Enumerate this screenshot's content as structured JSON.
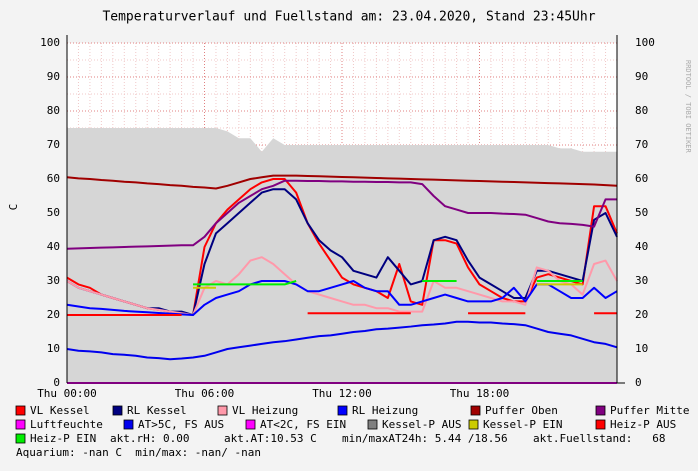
{
  "chart_data": {
    "type": "line",
    "title": "Temperaturverlauf und Fuellstand am: 23.04.2020, Stand 23:45Uhr",
    "y_label": "C",
    "watermark": "RRDTOOL / TOBI OETIKER",
    "xlim": [
      0,
      24
    ],
    "ylim": [
      0,
      100
    ],
    "xticks": [
      {
        "value": 0,
        "label": "Thu 00:00"
      },
      {
        "value": 6,
        "label": "Thu 06:00"
      },
      {
        "value": 12,
        "label": "Thu 12:00"
      },
      {
        "value": 18,
        "label": "Thu 18:00"
      }
    ],
    "yticks": [
      0,
      10,
      20,
      30,
      40,
      50,
      60,
      70,
      80,
      90,
      100
    ],
    "grid": true,
    "x": [
      0,
      0.5,
      1,
      1.5,
      2,
      2.5,
      3,
      3.5,
      4,
      4.5,
      5,
      5.5,
      6,
      6.5,
      7,
      7.5,
      8,
      8.5,
      9,
      9.5,
      10,
      10.5,
      11,
      11.5,
      12,
      12.5,
      13,
      13.5,
      14,
      14.5,
      15,
      15.5,
      16,
      16.5,
      17,
      17.5,
      18,
      18.5,
      19,
      19.5,
      20,
      20.5,
      21,
      21.5,
      22,
      22.5,
      23,
      23.5,
      24
    ],
    "series": [
      {
        "color": "#d6d6d6",
        "area": true,
        "values": [
          75,
          75,
          75,
          75,
          75,
          75,
          75,
          75,
          75,
          75,
          75,
          75,
          75,
          75,
          74,
          72,
          72,
          68,
          72,
          70,
          70,
          70,
          70,
          70,
          70,
          70,
          70,
          70,
          70,
          70,
          70,
          70,
          70,
          70,
          70,
          70,
          70,
          70,
          70,
          70,
          70,
          70,
          70,
          69,
          69,
          68,
          68,
          68,
          68
        ]
      },
      {
        "name": "VL Kessel",
        "color": "#ff0000",
        "values": [
          31,
          29,
          28,
          26,
          25,
          24,
          23,
          22,
          21.5,
          21,
          20.5,
          20,
          40,
          47,
          51,
          54,
          57,
          59,
          60,
          60,
          56,
          47,
          41,
          36,
          31,
          29,
          28,
          27,
          25,
          35,
          24,
          23,
          42,
          42,
          41,
          34,
          29,
          27,
          25,
          24,
          24,
          31,
          32,
          31,
          30,
          29,
          52,
          52,
          44
        ]
      },
      {
        "name": "RL Kessel",
        "color": "#000080",
        "values": [
          30,
          28,
          27,
          26,
          25,
          24,
          23,
          22,
          22,
          21,
          21,
          20,
          35,
          44,
          47,
          50,
          53,
          56,
          57,
          57,
          54,
          47,
          42,
          39,
          37,
          33,
          32,
          31,
          37,
          33,
          29,
          30,
          42,
          43,
          42,
          36,
          31,
          29,
          27,
          25,
          25,
          33,
          33,
          32,
          31,
          30,
          48,
          50,
          43
        ]
      },
      {
        "name": "VL Heizung",
        "color": "#ff99aa",
        "values": [
          30,
          28,
          27,
          26,
          25,
          24,
          23,
          22,
          21.5,
          21,
          20.5,
          20,
          28,
          30,
          29,
          32,
          36,
          37,
          35,
          32,
          29,
          27,
          26,
          25,
          24,
          23,
          23,
          22,
          22,
          21,
          21,
          21,
          30,
          28,
          28,
          27,
          26,
          25,
          24,
          24,
          23,
          34,
          33,
          30,
          29,
          26,
          35,
          36,
          30
        ]
      },
      {
        "name": "RL Heizung",
        "color": "#0000ff",
        "values": [
          23,
          22.5,
          22,
          21.8,
          21.5,
          21.2,
          21,
          20.8,
          20.6,
          20.4,
          20.2,
          20,
          23,
          25,
          26,
          27,
          29,
          30,
          30,
          30,
          29,
          27,
          27,
          28,
          29,
          30,
          28,
          27,
          27,
          23,
          23,
          24,
          25,
          26,
          25,
          24,
          24,
          24,
          25,
          28,
          24,
          29,
          29,
          27,
          25,
          25,
          28,
          25,
          27
        ]
      },
      {
        "name": "Puffer Oben",
        "color": "#a00000",
        "values": [
          60.5,
          60.2,
          60,
          59.7,
          59.5,
          59.2,
          59,
          58.7,
          58.5,
          58.2,
          58,
          57.7,
          57.5,
          57.2,
          58,
          59,
          60,
          60.5,
          61,
          61,
          61,
          60.9,
          60.8,
          60.7,
          60.6,
          60.5,
          60.4,
          60.3,
          60.2,
          60.1,
          60,
          59.9,
          59.8,
          59.7,
          59.6,
          59.5,
          59.4,
          59.3,
          59.2,
          59.1,
          59,
          58.9,
          58.8,
          58.7,
          58.6,
          58.5,
          58.4,
          58.2,
          58
        ]
      },
      {
        "name": "Puffer Mitte",
        "color": "#800080",
        "values": [
          39.5,
          39.6,
          39.7,
          39.8,
          39.9,
          40,
          40.1,
          40.2,
          40.3,
          40.4,
          40.5,
          40.5,
          43,
          47,
          50,
          53,
          55,
          57,
          58,
          59.5,
          59.5,
          59.4,
          59.4,
          59.3,
          59.3,
          59.2,
          59.2,
          59.1,
          59.1,
          59,
          59,
          58.5,
          55,
          52,
          51,
          50,
          50,
          50,
          49.8,
          49.7,
          49.5,
          48.5,
          47.5,
          47,
          46.8,
          46.5,
          46,
          54,
          54
        ]
      },
      {
        "name": "Luftfeuchte",
        "color": "#ff00ff",
        "values": [
          0,
          0,
          0,
          0,
          0,
          0,
          0,
          0,
          0,
          0,
          0,
          0,
          0,
          0,
          0,
          0,
          0,
          0,
          0,
          0,
          0,
          0,
          0,
          0,
          0,
          0,
          0,
          0,
          0,
          0,
          0,
          0,
          0,
          0,
          0,
          0,
          0,
          0,
          0,
          0,
          0,
          0,
          0,
          0,
          0,
          0,
          0,
          0,
          0
        ]
      },
      {
        "name": "AT>5C, FS AUS",
        "color": "#0000ee",
        "values": [
          10,
          9.5,
          9.3,
          9,
          8.5,
          8.3,
          8,
          7.5,
          7.3,
          7,
          7.2,
          7.5,
          8,
          9,
          10,
          10.5,
          11,
          11.5,
          12,
          12.3,
          12.8,
          13.3,
          13.8,
          14,
          14.5,
          15,
          15.3,
          15.8,
          16,
          16.3,
          16.6,
          17,
          17.2,
          17.5,
          18,
          18,
          17.8,
          17.8,
          17.5,
          17.3,
          17,
          16,
          15,
          14.5,
          14,
          13,
          12,
          11.5,
          10.5
        ]
      },
      {
        "name": "AT<2C, FS EIN",
        "color": "#ff00ff"
      },
      {
        "name": "Kessel-P AUS",
        "color": "#808080"
      },
      {
        "name": "Kessel-P EIN",
        "color": "#cccc00",
        "values": [
          null,
          null,
          null,
          null,
          null,
          null,
          null,
          null,
          null,
          null,
          null,
          28,
          28,
          28,
          null,
          null,
          null,
          null,
          null,
          null,
          null,
          null,
          null,
          null,
          null,
          null,
          null,
          null,
          null,
          null,
          null,
          null,
          null,
          null,
          null,
          null,
          null,
          null,
          null,
          null,
          null,
          29,
          29,
          29,
          29,
          29,
          null,
          null,
          null
        ]
      },
      {
        "name": "Heiz-P AUS",
        "color": "#ff0000",
        "values": [
          20,
          20,
          20,
          20,
          20,
          20,
          20,
          20,
          20,
          20,
          20,
          null,
          null,
          null,
          null,
          null,
          null,
          null,
          null,
          null,
          null,
          20.5,
          20.5,
          20.5,
          20.5,
          20.5,
          20.5,
          20.5,
          20.5,
          20.5,
          20.5,
          null,
          null,
          null,
          null,
          20.5,
          20.5,
          20.5,
          20.5,
          20.5,
          20.5,
          null,
          null,
          null,
          null,
          null,
          20.5,
          20.5,
          20.5
        ]
      },
      {
        "name": "Heiz-P EIN",
        "color": "#00ee00",
        "values": [
          null,
          null,
          null,
          null,
          null,
          null,
          null,
          null,
          null,
          null,
          null,
          29,
          29,
          29,
          29,
          29,
          29,
          29,
          29,
          29,
          30,
          null,
          null,
          null,
          null,
          null,
          null,
          null,
          null,
          null,
          null,
          30,
          30,
          30,
          30,
          null,
          null,
          null,
          null,
          null,
          null,
          30,
          30,
          30,
          30,
          30,
          null,
          null,
          null
        ]
      }
    ],
    "legend_notes": [
      "akt.rH: 0.00",
      "akt.AT:10.53 C",
      "min/maxAT24h: 5.44 /18.56",
      "akt.Fuellstand:   68",
      "Aquarium: -nan C  min/max: -nan/ -nan"
    ]
  }
}
